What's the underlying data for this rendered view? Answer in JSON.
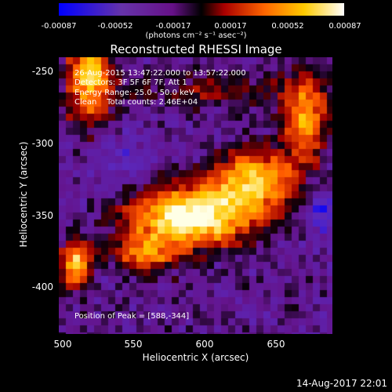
{
  "colorbar": {
    "ticks": [
      "-0.00087",
      "-0.00052",
      "-0.00017",
      "0.00017",
      "0.00052",
      "0.00087"
    ],
    "unit": "(photons cm⁻² s⁻¹ asec⁻²)",
    "stops": [
      "#0000ff",
      "#6633aa",
      "#661188",
      "#000000",
      "#aa0000",
      "#ff6600",
      "#ffcc00",
      "#ffffff"
    ]
  },
  "title": "Reconstructed RHESSI Image",
  "info": {
    "time": "26-Aug-2015 13:47:22.000 to 13:57:22.000",
    "detectors": "Detectors: 3F 5F 6F 7F, Att 1",
    "energy": "Energy Range: 25.0 - 50.0 keV",
    "clean": "Clean    Total counts: 2.46E+04"
  },
  "peak": "Position of Peak = [588,-344]",
  "axes": {
    "xlabel": "Heliocentric X (arcsec)",
    "ylabel": "Heliocentric Y (arcsec)",
    "xticks": [
      "500",
      "550",
      "600",
      "650"
    ],
    "yticks": [
      "-250",
      "-300",
      "-350",
      "-400"
    ],
    "xlim": [
      500,
      690
    ],
    "ylim": [
      -432,
      -240
    ]
  },
  "timestamp": "14-Aug-2017 22:01"
}
